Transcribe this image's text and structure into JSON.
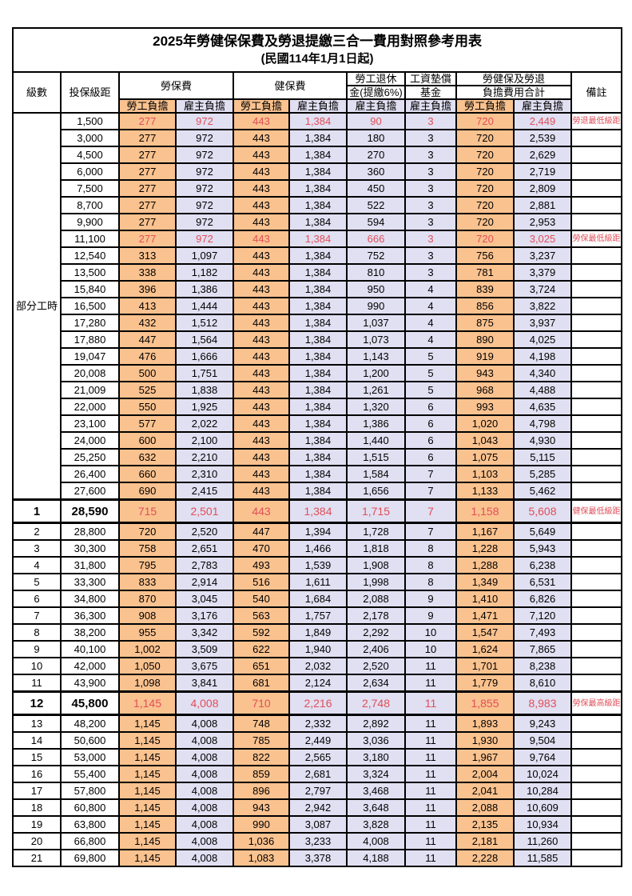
{
  "title": {
    "main": "2025年勞健保保費及勞退提繳三合一費用對照參考用表",
    "sub": "(民國114年1月1日起)"
  },
  "header": {
    "level": "級數",
    "bracket": "投保級距",
    "labor_ins": "勞保費",
    "health_ins": "健保費",
    "pension_line1": "勞工退休",
    "pension_line2": "金(提繳6%)",
    "wage_fund_line1": "工資墊償",
    "wage_fund_line2": "基金",
    "total_line1": "勞健保及勞退",
    "total_line2": "負擔費用合計",
    "note": "備註",
    "employee_share": "勞工負擔",
    "employer_share": "雇主負擔"
  },
  "part_time_label": "部分工時",
  "colors": {
    "employee_bg": "#FAC28F",
    "employer_bg": "#E1DFF2",
    "highlight_text": "#E04F58",
    "border": "#000000"
  },
  "rows": [
    {
      "level": "",
      "bracket": "1,500",
      "values": [
        "277",
        "972",
        "443",
        "1,384",
        "90",
        "3",
        "720",
        "2,449"
      ],
      "note": "勞退最低級距",
      "red": true,
      "bold": false
    },
    {
      "level": "",
      "bracket": "3,000",
      "values": [
        "277",
        "972",
        "443",
        "1,384",
        "180",
        "3",
        "720",
        "2,539"
      ],
      "note": "",
      "red": false,
      "bold": false
    },
    {
      "level": "",
      "bracket": "4,500",
      "values": [
        "277",
        "972",
        "443",
        "1,384",
        "270",
        "3",
        "720",
        "2,629"
      ],
      "note": "",
      "red": false,
      "bold": false
    },
    {
      "level": "",
      "bracket": "6,000",
      "values": [
        "277",
        "972",
        "443",
        "1,384",
        "360",
        "3",
        "720",
        "2,719"
      ],
      "note": "",
      "red": false,
      "bold": false
    },
    {
      "level": "",
      "bracket": "7,500",
      "values": [
        "277",
        "972",
        "443",
        "1,384",
        "450",
        "3",
        "720",
        "2,809"
      ],
      "note": "",
      "red": false,
      "bold": false
    },
    {
      "level": "",
      "bracket": "8,700",
      "values": [
        "277",
        "972",
        "443",
        "1,384",
        "522",
        "3",
        "720",
        "2,881"
      ],
      "note": "",
      "red": false,
      "bold": false
    },
    {
      "level": "",
      "bracket": "9,900",
      "values": [
        "277",
        "972",
        "443",
        "1,384",
        "594",
        "3",
        "720",
        "2,953"
      ],
      "note": "",
      "red": false,
      "bold": false
    },
    {
      "level": "",
      "bracket": "11,100",
      "values": [
        "277",
        "972",
        "443",
        "1,384",
        "666",
        "3",
        "720",
        "3,025"
      ],
      "note": "勞保最低級距",
      "red": true,
      "bold": false
    },
    {
      "level": "",
      "bracket": "12,540",
      "values": [
        "313",
        "1,097",
        "443",
        "1,384",
        "752",
        "3",
        "756",
        "3,237"
      ],
      "note": "",
      "red": false,
      "bold": false
    },
    {
      "level": "",
      "bracket": "13,500",
      "values": [
        "338",
        "1,182",
        "443",
        "1,384",
        "810",
        "3",
        "781",
        "3,379"
      ],
      "note": "",
      "red": false,
      "bold": false
    },
    {
      "level": "",
      "bracket": "15,840",
      "values": [
        "396",
        "1,386",
        "443",
        "1,384",
        "950",
        "4",
        "839",
        "3,724"
      ],
      "note": "",
      "red": false,
      "bold": false
    },
    {
      "level": "",
      "bracket": "16,500",
      "values": [
        "413",
        "1,444",
        "443",
        "1,384",
        "990",
        "4",
        "856",
        "3,822"
      ],
      "note": "",
      "red": false,
      "bold": false
    },
    {
      "level": "",
      "bracket": "17,280",
      "values": [
        "432",
        "1,512",
        "443",
        "1,384",
        "1,037",
        "4",
        "875",
        "3,937"
      ],
      "note": "",
      "red": false,
      "bold": false
    },
    {
      "level": "",
      "bracket": "17,880",
      "values": [
        "447",
        "1,564",
        "443",
        "1,384",
        "1,073",
        "4",
        "890",
        "4,025"
      ],
      "note": "",
      "red": false,
      "bold": false
    },
    {
      "level": "",
      "bracket": "19,047",
      "values": [
        "476",
        "1,666",
        "443",
        "1,384",
        "1,143",
        "5",
        "919",
        "4,198"
      ],
      "note": "",
      "red": false,
      "bold": false
    },
    {
      "level": "",
      "bracket": "20,008",
      "values": [
        "500",
        "1,751",
        "443",
        "1,384",
        "1,200",
        "5",
        "943",
        "4,340"
      ],
      "note": "",
      "red": false,
      "bold": false
    },
    {
      "level": "",
      "bracket": "21,009",
      "values": [
        "525",
        "1,838",
        "443",
        "1,384",
        "1,261",
        "5",
        "968",
        "4,488"
      ],
      "note": "",
      "red": false,
      "bold": false
    },
    {
      "level": "",
      "bracket": "22,000",
      "values": [
        "550",
        "1,925",
        "443",
        "1,384",
        "1,320",
        "6",
        "993",
        "4,635"
      ],
      "note": "",
      "red": false,
      "bold": false
    },
    {
      "level": "",
      "bracket": "23,100",
      "values": [
        "577",
        "2,022",
        "443",
        "1,384",
        "1,386",
        "6",
        "1,020",
        "4,798"
      ],
      "note": "",
      "red": false,
      "bold": false
    },
    {
      "level": "",
      "bracket": "24,000",
      "values": [
        "600",
        "2,100",
        "443",
        "1,384",
        "1,440",
        "6",
        "1,043",
        "4,930"
      ],
      "note": "",
      "red": false,
      "bold": false
    },
    {
      "level": "",
      "bracket": "25,250",
      "values": [
        "632",
        "2,210",
        "443",
        "1,384",
        "1,515",
        "6",
        "1,075",
        "5,115"
      ],
      "note": "",
      "red": false,
      "bold": false
    },
    {
      "level": "",
      "bracket": "26,400",
      "values": [
        "660",
        "2,310",
        "443",
        "1,384",
        "1,584",
        "7",
        "1,103",
        "5,285"
      ],
      "note": "",
      "red": false,
      "bold": false
    },
    {
      "level": "",
      "bracket": "27,600",
      "values": [
        "690",
        "2,415",
        "443",
        "1,384",
        "1,656",
        "7",
        "1,133",
        "5,462"
      ],
      "note": "",
      "red": false,
      "bold": false
    },
    {
      "level": "1",
      "bracket": "28,590",
      "values": [
        "715",
        "2,501",
        "443",
        "1,384",
        "1,715",
        "7",
        "1,158",
        "5,608"
      ],
      "note": "健保最低級距",
      "red": true,
      "bold": true
    },
    {
      "level": "2",
      "bracket": "28,800",
      "values": [
        "720",
        "2,520",
        "447",
        "1,394",
        "1,728",
        "7",
        "1,167",
        "5,649"
      ],
      "note": "",
      "red": false,
      "bold": false
    },
    {
      "level": "3",
      "bracket": "30,300",
      "values": [
        "758",
        "2,651",
        "470",
        "1,466",
        "1,818",
        "8",
        "1,228",
        "5,943"
      ],
      "note": "",
      "red": false,
      "bold": false
    },
    {
      "level": "4",
      "bracket": "31,800",
      "values": [
        "795",
        "2,783",
        "493",
        "1,539",
        "1,908",
        "8",
        "1,288",
        "6,238"
      ],
      "note": "",
      "red": false,
      "bold": false
    },
    {
      "level": "5",
      "bracket": "33,300",
      "values": [
        "833",
        "2,914",
        "516",
        "1,611",
        "1,998",
        "8",
        "1,349",
        "6,531"
      ],
      "note": "",
      "red": false,
      "bold": false
    },
    {
      "level": "6",
      "bracket": "34,800",
      "values": [
        "870",
        "3,045",
        "540",
        "1,684",
        "2,088",
        "9",
        "1,410",
        "6,826"
      ],
      "note": "",
      "red": false,
      "bold": false
    },
    {
      "level": "7",
      "bracket": "36,300",
      "values": [
        "908",
        "3,176",
        "563",
        "1,757",
        "2,178",
        "9",
        "1,471",
        "7,120"
      ],
      "note": "",
      "red": false,
      "bold": false
    },
    {
      "level": "8",
      "bracket": "38,200",
      "values": [
        "955",
        "3,342",
        "592",
        "1,849",
        "2,292",
        "10",
        "1,547",
        "7,493"
      ],
      "note": "",
      "red": false,
      "bold": false
    },
    {
      "level": "9",
      "bracket": "40,100",
      "values": [
        "1,002",
        "3,509",
        "622",
        "1,940",
        "2,406",
        "10",
        "1,624",
        "7,865"
      ],
      "note": "",
      "red": false,
      "bold": false
    },
    {
      "level": "10",
      "bracket": "42,000",
      "values": [
        "1,050",
        "3,675",
        "651",
        "2,032",
        "2,520",
        "11",
        "1,701",
        "8,238"
      ],
      "note": "",
      "red": false,
      "bold": false
    },
    {
      "level": "11",
      "bracket": "43,900",
      "values": [
        "1,098",
        "3,841",
        "681",
        "2,124",
        "2,634",
        "11",
        "1,779",
        "8,610"
      ],
      "note": "",
      "red": false,
      "bold": false
    },
    {
      "level": "12",
      "bracket": "45,800",
      "values": [
        "1,145",
        "4,008",
        "710",
        "2,216",
        "2,748",
        "11",
        "1,855",
        "8,983"
      ],
      "note": "勞保最高級距",
      "red": true,
      "bold": true
    },
    {
      "level": "13",
      "bracket": "48,200",
      "values": [
        "1,145",
        "4,008",
        "748",
        "2,332",
        "2,892",
        "11",
        "1,893",
        "9,243"
      ],
      "note": "",
      "red": false,
      "bold": false
    },
    {
      "level": "14",
      "bracket": "50,600",
      "values": [
        "1,145",
        "4,008",
        "785",
        "2,449",
        "3,036",
        "11",
        "1,930",
        "9,504"
      ],
      "note": "",
      "red": false,
      "bold": false
    },
    {
      "level": "15",
      "bracket": "53,000",
      "values": [
        "1,145",
        "4,008",
        "822",
        "2,565",
        "3,180",
        "11",
        "1,967",
        "9,764"
      ],
      "note": "",
      "red": false,
      "bold": false
    },
    {
      "level": "16",
      "bracket": "55,400",
      "values": [
        "1,145",
        "4,008",
        "859",
        "2,681",
        "3,324",
        "11",
        "2,004",
        "10,024"
      ],
      "note": "",
      "red": false,
      "bold": false
    },
    {
      "level": "17",
      "bracket": "57,800",
      "values": [
        "1,145",
        "4,008",
        "896",
        "2,797",
        "3,468",
        "11",
        "2,041",
        "10,284"
      ],
      "note": "",
      "red": false,
      "bold": false
    },
    {
      "level": "18",
      "bracket": "60,800",
      "values": [
        "1,145",
        "4,008",
        "943",
        "2,942",
        "3,648",
        "11",
        "2,088",
        "10,609"
      ],
      "note": "",
      "red": false,
      "bold": false
    },
    {
      "level": "19",
      "bracket": "63,800",
      "values": [
        "1,145",
        "4,008",
        "990",
        "3,087",
        "3,828",
        "11",
        "2,135",
        "10,934"
      ],
      "note": "",
      "red": false,
      "bold": false
    },
    {
      "level": "20",
      "bracket": "66,800",
      "values": [
        "1,145",
        "4,008",
        "1,036",
        "3,233",
        "4,008",
        "11",
        "2,181",
        "11,260"
      ],
      "note": "",
      "red": false,
      "bold": false
    },
    {
      "level": "21",
      "bracket": "69,800",
      "values": [
        "1,145",
        "4,008",
        "1,083",
        "3,378",
        "4,188",
        "11",
        "2,228",
        "11,585"
      ],
      "note": "",
      "red": false,
      "bold": false
    }
  ]
}
